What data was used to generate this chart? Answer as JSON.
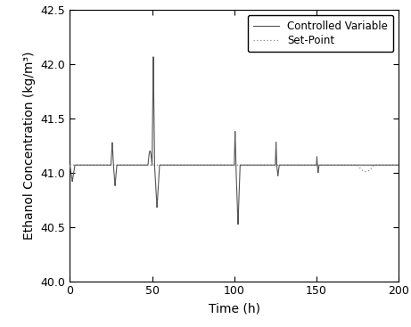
{
  "title": "",
  "xlabel": "Time (h)",
  "ylabel": "Ethanol Concentration (kg/m³)",
  "xlim": [
    0,
    200
  ],
  "ylim": [
    40.0,
    42.5
  ],
  "yticks": [
    40.0,
    40.5,
    41.0,
    41.5,
    42.0,
    42.5
  ],
  "xticks": [
    0,
    50,
    100,
    150,
    200
  ],
  "baseline": 41.07,
  "cv_color": "#555555",
  "sp_color": "#888888",
  "legend_labels": [
    "Controlled Variable",
    "Set-Point"
  ],
  "figsize": [
    4.61,
    3.67
  ],
  "dpi": 100
}
